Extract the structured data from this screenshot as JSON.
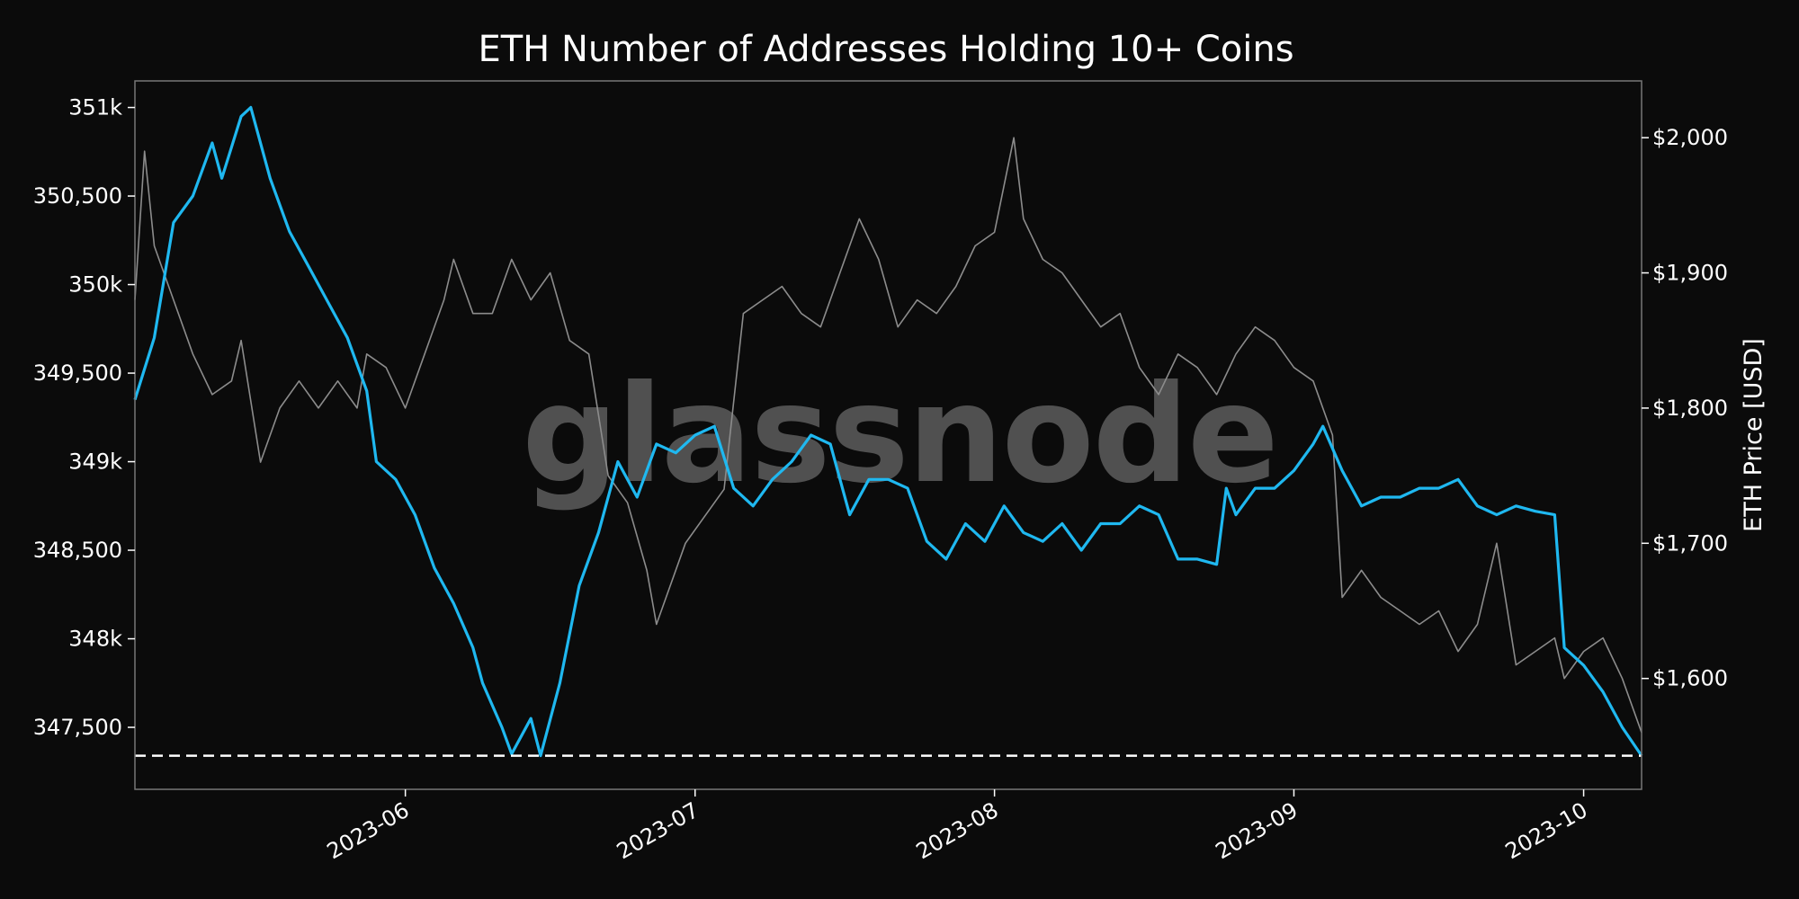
{
  "chart_data": {
    "type": "line",
    "title": "ETH Number of Addresses Holding 10+ Coins",
    "watermark": "glassnode",
    "xlabel": "",
    "ylabel_left": "",
    "ylabel_right": "ETH Price [USD]",
    "x_range": [
      "2023-05-04",
      "2023-10-07"
    ],
    "x_ticks": [
      "2023-06",
      "2023-07",
      "2023-08",
      "2023-09",
      "2023-10"
    ],
    "x_tick_dates": [
      "2023-06-01",
      "2023-07-01",
      "2023-08-01",
      "2023-09-01",
      "2023-10-01"
    ],
    "y_left": {
      "range": [
        347150,
        351150
      ],
      "ticks": [
        347500,
        348000,
        348500,
        349000,
        349500,
        350000,
        350500,
        351000
      ],
      "tick_labels": [
        "347,500",
        "348k",
        "348,500",
        "349k",
        "349,500",
        "350k",
        "350,500",
        "351k"
      ]
    },
    "y_right": {
      "range": [
        1518,
        2042
      ],
      "ticks": [
        1600,
        1700,
        1800,
        1900,
        2000
      ],
      "tick_labels": [
        "$1,600",
        "$1,700",
        "$1,800",
        "$1,900",
        "$2,000"
      ]
    },
    "reference_line": {
      "value": 347340,
      "axis": "left",
      "style": "dashed",
      "color": "#ffffff"
    },
    "colors": {
      "addresses": "#1fb8f0",
      "price": "#8c8c8c",
      "background": "#0b0b0b",
      "frame": "#777777"
    },
    "grid": false,
    "series": [
      {
        "axis": "left",
        "points": [
          [
            "2023-05-04",
            349350
          ],
          [
            "2023-05-06",
            349700
          ],
          [
            "2023-05-08",
            350350
          ],
          [
            "2023-05-10",
            350500
          ],
          [
            "2023-05-12",
            350800
          ],
          [
            "2023-05-13",
            350600
          ],
          [
            "2023-05-15",
            350950
          ],
          [
            "2023-05-16",
            351000
          ],
          [
            "2023-05-18",
            350600
          ],
          [
            "2023-05-20",
            350300
          ],
          [
            "2023-05-22",
            350100
          ],
          [
            "2023-05-24",
            349900
          ],
          [
            "2023-05-26",
            349700
          ],
          [
            "2023-05-28",
            349400
          ],
          [
            "2023-05-29",
            349000
          ],
          [
            "2023-05-31",
            348900
          ],
          [
            "2023-06-02",
            348700
          ],
          [
            "2023-06-04",
            348400
          ],
          [
            "2023-06-06",
            348200
          ],
          [
            "2023-06-08",
            347950
          ],
          [
            "2023-06-09",
            347750
          ],
          [
            "2023-06-11",
            347500
          ],
          [
            "2023-06-12",
            347350
          ],
          [
            "2023-06-14",
            347550
          ],
          [
            "2023-06-15",
            347340
          ],
          [
            "2023-06-17",
            347750
          ],
          [
            "2023-06-19",
            348300
          ],
          [
            "2023-06-21",
            348600
          ],
          [
            "2023-06-23",
            349000
          ],
          [
            "2023-06-25",
            348800
          ],
          [
            "2023-06-27",
            349100
          ],
          [
            "2023-06-29",
            349050
          ],
          [
            "2023-07-01",
            349150
          ],
          [
            "2023-07-03",
            349200
          ],
          [
            "2023-07-05",
            348850
          ],
          [
            "2023-07-07",
            348750
          ],
          [
            "2023-07-09",
            348900
          ],
          [
            "2023-07-11",
            349000
          ],
          [
            "2023-07-13",
            349150
          ],
          [
            "2023-07-15",
            349100
          ],
          [
            "2023-07-17",
            348700
          ],
          [
            "2023-07-19",
            348900
          ],
          [
            "2023-07-21",
            348900
          ],
          [
            "2023-07-23",
            348850
          ],
          [
            "2023-07-25",
            348550
          ],
          [
            "2023-07-27",
            348450
          ],
          [
            "2023-07-29",
            348650
          ],
          [
            "2023-07-31",
            348550
          ],
          [
            "2023-08-02",
            348750
          ],
          [
            "2023-08-04",
            348600
          ],
          [
            "2023-08-06",
            348550
          ],
          [
            "2023-08-08",
            348650
          ],
          [
            "2023-08-10",
            348500
          ],
          [
            "2023-08-12",
            348650
          ],
          [
            "2023-08-14",
            348650
          ],
          [
            "2023-08-16",
            348750
          ],
          [
            "2023-08-18",
            348700
          ],
          [
            "2023-08-20",
            348450
          ],
          [
            "2023-08-22",
            348450
          ],
          [
            "2023-08-24",
            348420
          ],
          [
            "2023-08-25",
            348850
          ],
          [
            "2023-08-26",
            348700
          ],
          [
            "2023-08-28",
            348850
          ],
          [
            "2023-08-30",
            348850
          ],
          [
            "2023-09-01",
            348950
          ],
          [
            "2023-09-03",
            349100
          ],
          [
            "2023-09-04",
            349200
          ],
          [
            "2023-09-06",
            348950
          ],
          [
            "2023-09-08",
            348750
          ],
          [
            "2023-09-10",
            348800
          ],
          [
            "2023-09-12",
            348800
          ],
          [
            "2023-09-14",
            348850
          ],
          [
            "2023-09-16",
            348850
          ],
          [
            "2023-09-18",
            348900
          ],
          [
            "2023-09-20",
            348750
          ],
          [
            "2023-09-22",
            348700
          ],
          [
            "2023-09-24",
            348750
          ],
          [
            "2023-09-26",
            348720
          ],
          [
            "2023-09-28",
            348700
          ],
          [
            "2023-09-29",
            347950
          ],
          [
            "2023-10-01",
            347850
          ],
          [
            "2023-10-03",
            347700
          ],
          [
            "2023-10-05",
            347500
          ],
          [
            "2023-10-07",
            347340
          ]
        ]
      },
      {
        "axis": "right",
        "points": [
          [
            "2023-05-04",
            1880
          ],
          [
            "2023-05-05",
            1990
          ],
          [
            "2023-05-06",
            1920
          ],
          [
            "2023-05-08",
            1880
          ],
          [
            "2023-05-10",
            1840
          ],
          [
            "2023-05-12",
            1810
          ],
          [
            "2023-05-14",
            1820
          ],
          [
            "2023-05-15",
            1850
          ],
          [
            "2023-05-17",
            1760
          ],
          [
            "2023-05-19",
            1800
          ],
          [
            "2023-05-21",
            1820
          ],
          [
            "2023-05-23",
            1800
          ],
          [
            "2023-05-25",
            1820
          ],
          [
            "2023-05-27",
            1800
          ],
          [
            "2023-05-28",
            1840
          ],
          [
            "2023-05-30",
            1830
          ],
          [
            "2023-06-01",
            1800
          ],
          [
            "2023-06-03",
            1840
          ],
          [
            "2023-06-05",
            1880
          ],
          [
            "2023-06-06",
            1910
          ],
          [
            "2023-06-08",
            1870
          ],
          [
            "2023-06-10",
            1870
          ],
          [
            "2023-06-12",
            1910
          ],
          [
            "2023-06-14",
            1880
          ],
          [
            "2023-06-16",
            1900
          ],
          [
            "2023-06-18",
            1850
          ],
          [
            "2023-06-20",
            1840
          ],
          [
            "2023-06-22",
            1750
          ],
          [
            "2023-06-24",
            1730
          ],
          [
            "2023-06-26",
            1680
          ],
          [
            "2023-06-27",
            1640
          ],
          [
            "2023-06-28",
            1660
          ],
          [
            "2023-06-30",
            1700
          ],
          [
            "2023-07-02",
            1720
          ],
          [
            "2023-07-04",
            1740
          ],
          [
            "2023-07-06",
            1870
          ],
          [
            "2023-07-08",
            1880
          ],
          [
            "2023-07-10",
            1890
          ],
          [
            "2023-07-12",
            1870
          ],
          [
            "2023-07-14",
            1860
          ],
          [
            "2023-07-16",
            1900
          ],
          [
            "2023-07-18",
            1940
          ],
          [
            "2023-07-20",
            1910
          ],
          [
            "2023-07-22",
            1860
          ],
          [
            "2023-07-24",
            1880
          ],
          [
            "2023-07-26",
            1870
          ],
          [
            "2023-07-28",
            1890
          ],
          [
            "2023-07-30",
            1920
          ],
          [
            "2023-08-01",
            1930
          ],
          [
            "2023-08-03",
            2000
          ],
          [
            "2023-08-04",
            1940
          ],
          [
            "2023-08-06",
            1910
          ],
          [
            "2023-08-08",
            1900
          ],
          [
            "2023-08-10",
            1880
          ],
          [
            "2023-08-12",
            1860
          ],
          [
            "2023-08-14",
            1870
          ],
          [
            "2023-08-16",
            1830
          ],
          [
            "2023-08-18",
            1810
          ],
          [
            "2023-08-20",
            1840
          ],
          [
            "2023-08-22",
            1830
          ],
          [
            "2023-08-24",
            1810
          ],
          [
            "2023-08-26",
            1840
          ],
          [
            "2023-08-28",
            1860
          ],
          [
            "2023-08-30",
            1850
          ],
          [
            "2023-09-01",
            1830
          ],
          [
            "2023-09-03",
            1820
          ],
          [
            "2023-09-05",
            1780
          ],
          [
            "2023-09-06",
            1660
          ],
          [
            "2023-09-08",
            1680
          ],
          [
            "2023-09-10",
            1660
          ],
          [
            "2023-09-12",
            1650
          ],
          [
            "2023-09-14",
            1640
          ],
          [
            "2023-09-16",
            1650
          ],
          [
            "2023-09-18",
            1620
          ],
          [
            "2023-09-20",
            1640
          ],
          [
            "2023-09-22",
            1700
          ],
          [
            "2023-09-24",
            1610
          ],
          [
            "2023-09-26",
            1620
          ],
          [
            "2023-09-28",
            1630
          ],
          [
            "2023-09-29",
            1600
          ],
          [
            "2023-10-01",
            1620
          ],
          [
            "2023-10-03",
            1630
          ],
          [
            "2023-10-05",
            1600
          ],
          [
            "2023-10-07",
            1560
          ]
        ]
      }
    ]
  }
}
